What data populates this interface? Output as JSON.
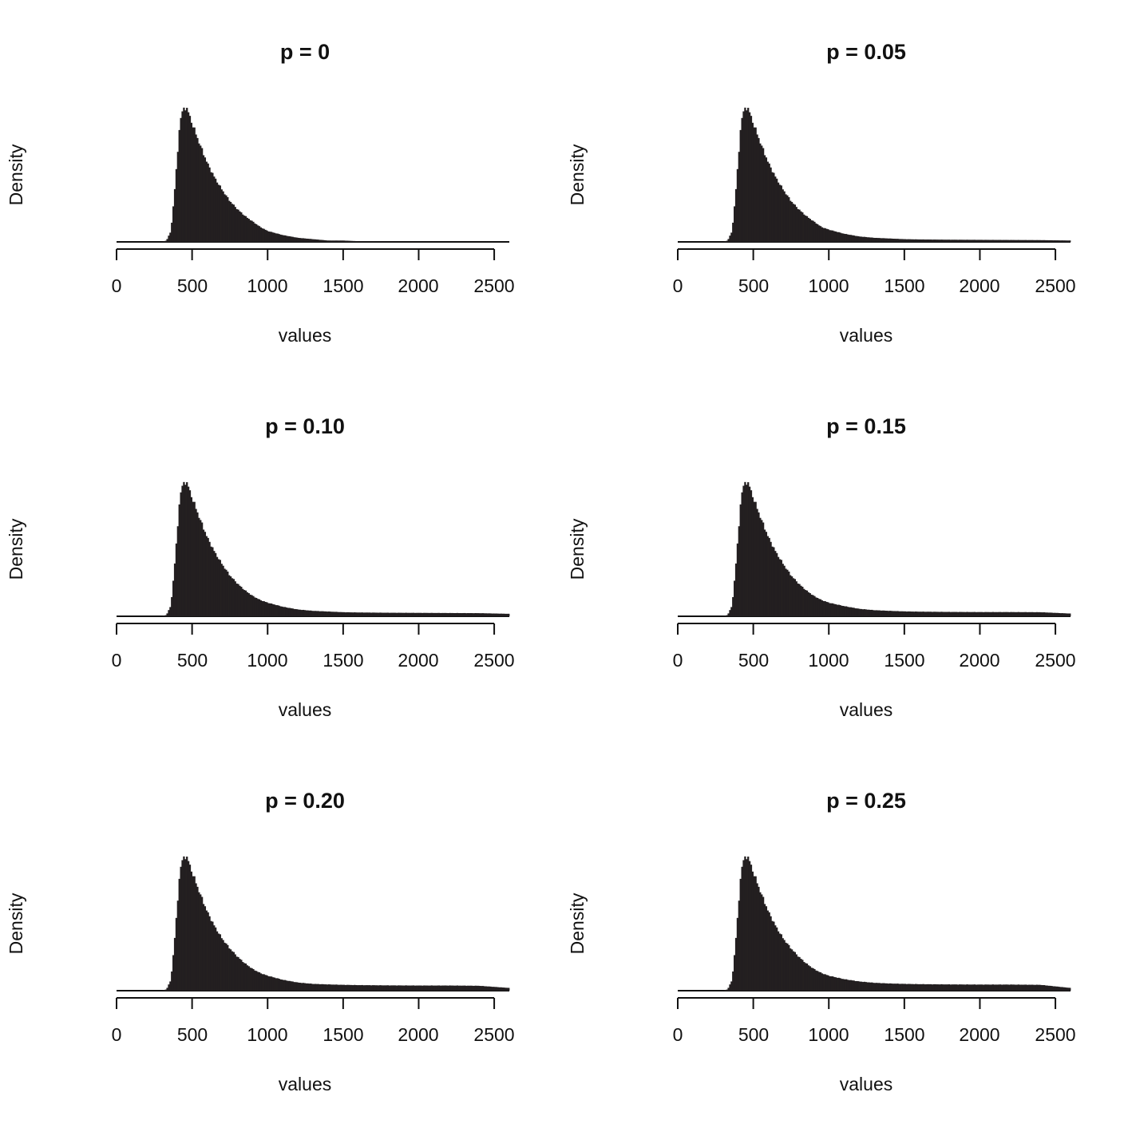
{
  "chart_data": [
    {
      "type": "histogram",
      "title": "p = 0",
      "xlabel": "values",
      "ylabel": "Density",
      "xlim": [
        0,
        2600
      ],
      "xticks": [
        0,
        500,
        1000,
        1500,
        2000,
        2500
      ],
      "xtick_labels": [
        "0",
        "500",
        "1000",
        "1500",
        "2000",
        "2500"
      ],
      "ylim": [
        0,
        1.0
      ],
      "bar_color": "#231f20",
      "density_profile": {
        "x": [
          0,
          300,
          330,
          360,
          390,
          420,
          450,
          470,
          500,
          550,
          600,
          650,
          700,
          750,
          800,
          850,
          900,
          950,
          1000,
          1100,
          1200,
          1300,
          1400,
          1500,
          1600,
          1800,
          2000,
          2200,
          2400,
          2600
        ],
        "y": [
          0,
          0,
          0.01,
          0.08,
          0.45,
          0.9,
          1.0,
          0.97,
          0.87,
          0.72,
          0.58,
          0.47,
          0.38,
          0.3,
          0.24,
          0.19,
          0.15,
          0.11,
          0.08,
          0.05,
          0.03,
          0.02,
          0.01,
          0.01,
          0.005,
          0.003,
          0.002,
          0.001,
          0.001,
          0
        ]
      }
    },
    {
      "type": "histogram",
      "title": "p = 0.05",
      "xlabel": "values",
      "ylabel": "Density",
      "xlim": [
        0,
        2600
      ],
      "xticks": [
        0,
        500,
        1000,
        1500,
        2000,
        2500
      ],
      "xtick_labels": [
        "0",
        "500",
        "1000",
        "1500",
        "2000",
        "2500"
      ],
      "ylim": [
        0,
        1.0
      ],
      "bar_color": "#231f20",
      "density_profile": {
        "x": [
          0,
          300,
          330,
          360,
          390,
          420,
          450,
          470,
          500,
          550,
          600,
          650,
          700,
          750,
          800,
          850,
          900,
          950,
          1000,
          1100,
          1200,
          1300,
          1400,
          1500,
          1600,
          1800,
          2000,
          2200,
          2400,
          2600
        ],
        "y": [
          0,
          0,
          0.01,
          0.08,
          0.45,
          0.9,
          1.0,
          0.97,
          0.87,
          0.72,
          0.58,
          0.47,
          0.38,
          0.3,
          0.24,
          0.19,
          0.15,
          0.11,
          0.09,
          0.06,
          0.04,
          0.03,
          0.025,
          0.02,
          0.018,
          0.016,
          0.015,
          0.014,
          0.013,
          0.01
        ]
      }
    },
    {
      "type": "histogram",
      "title": "p = 0.10",
      "xlabel": "values",
      "ylabel": "Density",
      "xlim": [
        0,
        2600
      ],
      "xticks": [
        0,
        500,
        1000,
        1500,
        2000,
        2500
      ],
      "xtick_labels": [
        "0",
        "500",
        "1000",
        "1500",
        "2000",
        "2500"
      ],
      "ylim": [
        0,
        1.0
      ],
      "bar_color": "#231f20",
      "density_profile": {
        "x": [
          0,
          300,
          330,
          360,
          390,
          420,
          450,
          470,
          500,
          550,
          600,
          650,
          700,
          750,
          800,
          850,
          900,
          950,
          1000,
          1100,
          1200,
          1300,
          1400,
          1500,
          1600,
          1800,
          2000,
          2200,
          2400,
          2600
        ],
        "y": [
          0,
          0,
          0.01,
          0.08,
          0.45,
          0.9,
          1.0,
          0.97,
          0.87,
          0.72,
          0.58,
          0.47,
          0.38,
          0.3,
          0.24,
          0.19,
          0.15,
          0.12,
          0.1,
          0.07,
          0.05,
          0.04,
          0.035,
          0.03,
          0.028,
          0.026,
          0.025,
          0.024,
          0.023,
          0.018
        ]
      }
    },
    {
      "type": "histogram",
      "title": "p = 0.15",
      "xlabel": "values",
      "ylabel": "Density",
      "xlim": [
        0,
        2600
      ],
      "xticks": [
        0,
        500,
        1000,
        1500,
        2000,
        2500
      ],
      "xtick_labels": [
        "0",
        "500",
        "1000",
        "1500",
        "2000",
        "2500"
      ],
      "ylim": [
        0,
        1.0
      ],
      "bar_color": "#231f20",
      "density_profile": {
        "x": [
          0,
          300,
          330,
          360,
          390,
          420,
          450,
          470,
          500,
          550,
          600,
          650,
          700,
          750,
          800,
          850,
          900,
          950,
          1000,
          1100,
          1200,
          1300,
          1400,
          1500,
          1600,
          1800,
          2000,
          2200,
          2400,
          2600
        ],
        "y": [
          0,
          0,
          0.01,
          0.08,
          0.45,
          0.9,
          1.0,
          0.97,
          0.87,
          0.72,
          0.58,
          0.47,
          0.38,
          0.3,
          0.24,
          0.19,
          0.15,
          0.12,
          0.1,
          0.075,
          0.055,
          0.045,
          0.04,
          0.036,
          0.034,
          0.032,
          0.031,
          0.031,
          0.03,
          0.02
        ]
      }
    },
    {
      "type": "histogram",
      "title": "p = 0.20",
      "xlabel": "values",
      "ylabel": "Density",
      "xlim": [
        0,
        2600
      ],
      "xticks": [
        0,
        500,
        1000,
        1500,
        2000,
        2500
      ],
      "xtick_labels": [
        "0",
        "500",
        "1000",
        "1500",
        "2000",
        "2500"
      ],
      "ylim": [
        0,
        1.0
      ],
      "bar_color": "#231f20",
      "density_profile": {
        "x": [
          0,
          300,
          330,
          360,
          390,
          420,
          450,
          470,
          500,
          550,
          600,
          650,
          700,
          750,
          800,
          850,
          900,
          950,
          1000,
          1100,
          1200,
          1300,
          1400,
          1500,
          1600,
          1800,
          2000,
          2200,
          2400,
          2600
        ],
        "y": [
          0,
          0,
          0.01,
          0.08,
          0.45,
          0.9,
          1.0,
          0.97,
          0.87,
          0.72,
          0.58,
          0.47,
          0.38,
          0.31,
          0.25,
          0.2,
          0.16,
          0.13,
          0.11,
          0.08,
          0.06,
          0.05,
          0.046,
          0.043,
          0.041,
          0.039,
          0.038,
          0.038,
          0.036,
          0.02
        ]
      }
    },
    {
      "type": "histogram",
      "title": "p = 0.25",
      "xlabel": "values",
      "ylabel": "Density",
      "xlim": [
        0,
        2600
      ],
      "xticks": [
        0,
        500,
        1000,
        1500,
        2000,
        2500
      ],
      "xtick_labels": [
        "0",
        "500",
        "1000",
        "1500",
        "2000",
        "2500"
      ],
      "ylim": [
        0,
        1.0
      ],
      "bar_color": "#231f20",
      "density_profile": {
        "x": [
          0,
          300,
          330,
          360,
          390,
          420,
          450,
          470,
          500,
          550,
          600,
          650,
          700,
          750,
          800,
          850,
          900,
          950,
          1000,
          1100,
          1200,
          1300,
          1400,
          1500,
          1600,
          1800,
          2000,
          2200,
          2400,
          2600
        ],
        "y": [
          0,
          0,
          0.01,
          0.08,
          0.45,
          0.9,
          1.0,
          0.97,
          0.87,
          0.72,
          0.58,
          0.47,
          0.38,
          0.31,
          0.25,
          0.2,
          0.16,
          0.13,
          0.11,
          0.085,
          0.068,
          0.058,
          0.053,
          0.05,
          0.048,
          0.046,
          0.045,
          0.045,
          0.043,
          0.02
        ]
      }
    }
  ]
}
